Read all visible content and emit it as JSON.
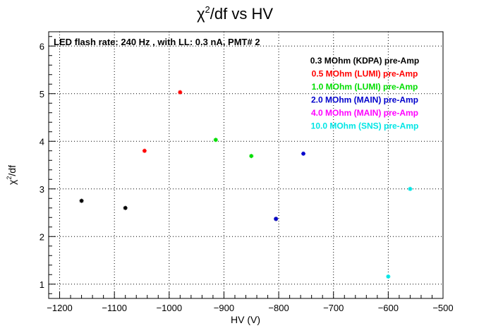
{
  "chart_data": {
    "type": "scatter",
    "title_main": "χ",
    "title_sup": "2",
    "title_rest": "/df vs HV",
    "xlabel": "HV (V)",
    "ylabel_main": "χ",
    "ylabel_sup": "2",
    "ylabel_rest": "/df",
    "annotation": "LED flash rate: 240 Hz , with LL: 0.3 nA, PMT# 2",
    "xlim": [
      -1220,
      -500
    ],
    "ylim": [
      0.7,
      6.3
    ],
    "xticks": [
      -1200,
      -1100,
      -1000,
      -900,
      -800,
      -700,
      -600,
      -500
    ],
    "xtick_labels": [
      "−1200",
      "−1100",
      "−1000",
      "−900",
      "−800",
      "−700",
      "−600",
      "−500"
    ],
    "yticks": [
      1,
      2,
      3,
      4,
      5,
      6
    ],
    "ytick_labels": [
      "1",
      "2",
      "3",
      "4",
      "5",
      "6"
    ],
    "grid": true,
    "legend_position": "top-right",
    "series": [
      {
        "name": "0.3 MOhm (KDPA) pre-Amp",
        "color": "#000000",
        "points": [
          [
            -1160,
            2.75
          ],
          [
            -1080,
            2.6
          ],
          [
            -805,
            2.37
          ]
        ]
      },
      {
        "name": "0.5 MOhm (LUMI) pre-Amp",
        "color": "#ff0000",
        "points": [
          [
            -1045,
            3.8
          ],
          [
            -980,
            5.03
          ]
        ]
      },
      {
        "name": "1.0 MOhm (LUMI) pre-Amp",
        "color": "#00dd00",
        "points": [
          [
            -915,
            4.03
          ],
          [
            -850,
            3.69
          ]
        ]
      },
      {
        "name": "2.0 MOhm (MAIN) pre-Amp",
        "color": "#0000cc",
        "points": [
          [
            -755,
            3.74
          ],
          [
            -805,
            2.37
          ]
        ]
      },
      {
        "name": "4.0 MOhm (MAIN) pre-Amp",
        "color": "#ff00ff",
        "points": []
      },
      {
        "name": "10.0 MOhm (SNS) pre-Amp",
        "color": "#00e5e5",
        "points": [
          [
            -560,
            3.0
          ],
          [
            -600,
            1.16
          ]
        ]
      }
    ]
  }
}
